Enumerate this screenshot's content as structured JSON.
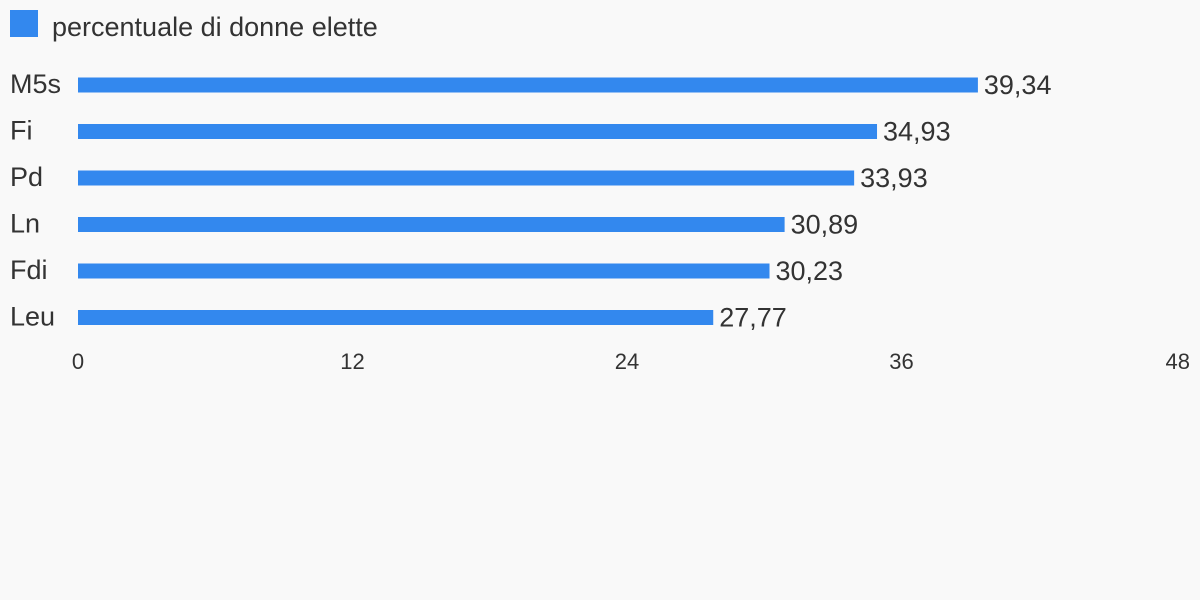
{
  "chart_data": {
    "type": "bar",
    "orientation": "horizontal",
    "categories": [
      "M5s",
      "Fi",
      "Pd",
      "Ln",
      "Fdi",
      "Leu"
    ],
    "series": [
      {
        "name": "percentuale di donne elette",
        "values": [
          39.34,
          34.93,
          33.93,
          30.89,
          30.23,
          27.77
        ],
        "color": "#3388ee"
      }
    ],
    "value_labels": [
      "39,34",
      "34,93",
      "33,93",
      "30,89",
      "30,23",
      "27,77"
    ],
    "x_ticks": [
      0,
      12,
      24,
      36,
      48
    ],
    "xlim": [
      0,
      48
    ],
    "legend_position": "top-left",
    "grid": false
  }
}
